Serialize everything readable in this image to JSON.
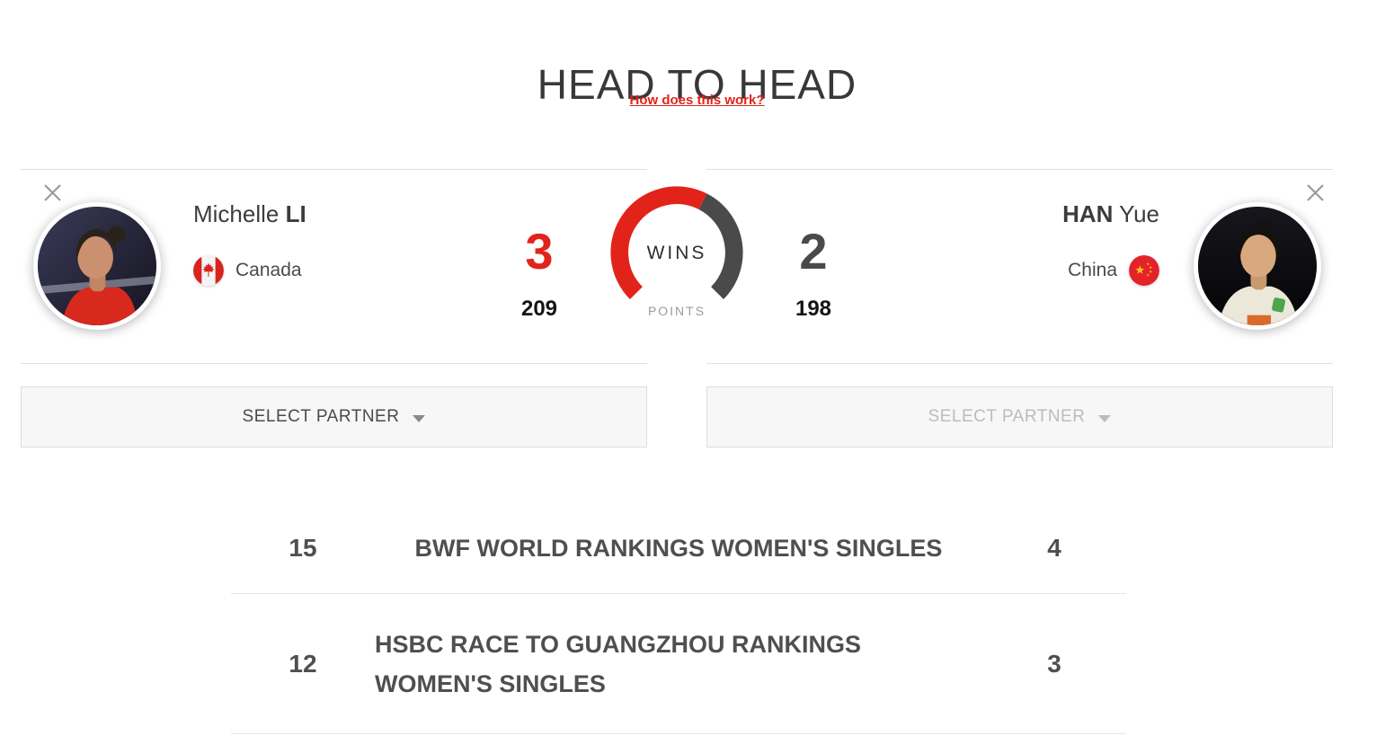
{
  "header": {
    "title": "HEAD TO HEAD",
    "help_link": "How does this work?"
  },
  "players": {
    "left": {
      "first_name": "Michelle",
      "last_name": "LI",
      "country": "Canada",
      "points": "209"
    },
    "right": {
      "first_name": "Yue",
      "last_name": "HAN",
      "country": "China",
      "points": "198"
    }
  },
  "gauge": {
    "wins_label": "WINS",
    "points_label": "POINTS",
    "left_wins": 3,
    "right_wins": 2,
    "arc_total_degrees": 270
  },
  "partner_selectors": {
    "left_label": "SELECT PARTNER",
    "right_label": "SELECT PARTNER"
  },
  "rankings": [
    {
      "left_value": "15",
      "label": "BWF WORLD RANKINGS WOMEN'S SINGLES",
      "right_value": "4"
    },
    {
      "left_value": "12",
      "label": "HSBC RACE TO GUANGZHOU RANKINGS WOMEN'S SINGLES",
      "right_value": "3"
    }
  ],
  "icons": {
    "close": "close-icon",
    "left_flag": "canada-flag-icon",
    "right_flag": "china-flag-icon",
    "dropdown": "chevron-down-icon"
  },
  "colors": {
    "accent_red": "#e2231a",
    "dark_gray": "#4a4a4a",
    "muted_gray": "#9b9b9b",
    "border_gray": "#e0e0e0",
    "panel_bg": "#f7f7f7"
  }
}
